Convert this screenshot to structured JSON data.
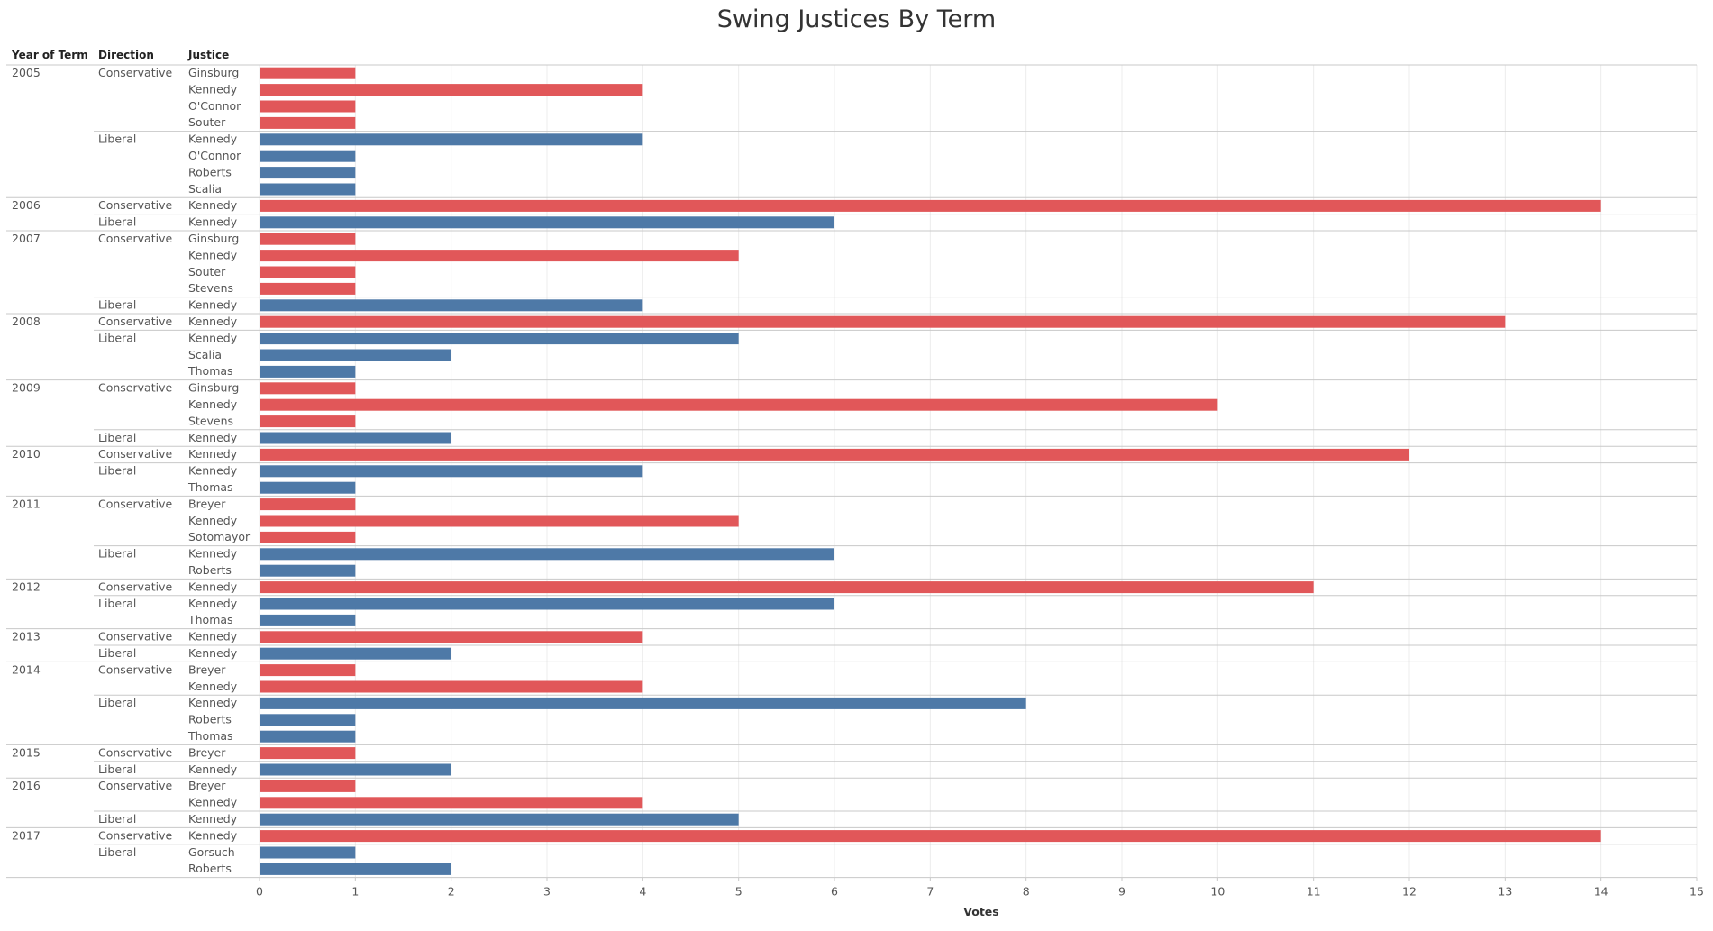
{
  "chart_data": {
    "type": "bar",
    "title": "Swing Justices By Term",
    "headers": {
      "year": "Year of Term",
      "direction": "Direction",
      "justice": "Justice"
    },
    "xlabel": "Votes",
    "xlim": [
      0,
      15
    ],
    "xticks": [
      "0",
      "1",
      "2",
      "3",
      "4",
      "5",
      "6",
      "7",
      "8",
      "9",
      "10",
      "11",
      "12",
      "13",
      "14",
      "15"
    ],
    "grid": true,
    "colors": {
      "Conservative": "#e15759",
      "Liberal": "#4e79a7"
    },
    "terms": [
      {
        "year": "2005",
        "groups": [
          {
            "direction": "Conservative",
            "rows": [
              {
                "justice": "Ginsburg",
                "votes": 1
              },
              {
                "justice": "Kennedy",
                "votes": 4
              },
              {
                "justice": "O'Connor",
                "votes": 1
              },
              {
                "justice": "Souter",
                "votes": 1
              }
            ]
          },
          {
            "direction": "Liberal",
            "rows": [
              {
                "justice": "Kennedy",
                "votes": 4
              },
              {
                "justice": "O'Connor",
                "votes": 1
              },
              {
                "justice": "Roberts",
                "votes": 1
              },
              {
                "justice": "Scalia",
                "votes": 1
              }
            ]
          }
        ]
      },
      {
        "year": "2006",
        "groups": [
          {
            "direction": "Conservative",
            "rows": [
              {
                "justice": "Kennedy",
                "votes": 14
              }
            ]
          },
          {
            "direction": "Liberal",
            "rows": [
              {
                "justice": "Kennedy",
                "votes": 6
              }
            ]
          }
        ]
      },
      {
        "year": "2007",
        "groups": [
          {
            "direction": "Conservative",
            "rows": [
              {
                "justice": "Ginsburg",
                "votes": 1
              },
              {
                "justice": "Kennedy",
                "votes": 5
              },
              {
                "justice": "Souter",
                "votes": 1
              },
              {
                "justice": "Stevens",
                "votes": 1
              }
            ]
          },
          {
            "direction": "Liberal",
            "rows": [
              {
                "justice": "Kennedy",
                "votes": 4
              }
            ]
          }
        ]
      },
      {
        "year": "2008",
        "groups": [
          {
            "direction": "Conservative",
            "rows": [
              {
                "justice": "Kennedy",
                "votes": 13
              }
            ]
          },
          {
            "direction": "Liberal",
            "rows": [
              {
                "justice": "Kennedy",
                "votes": 5
              },
              {
                "justice": "Scalia",
                "votes": 2
              },
              {
                "justice": "Thomas",
                "votes": 1
              }
            ]
          }
        ]
      },
      {
        "year": "2009",
        "groups": [
          {
            "direction": "Conservative",
            "rows": [
              {
                "justice": "Ginsburg",
                "votes": 1
              },
              {
                "justice": "Kennedy",
                "votes": 10
              },
              {
                "justice": "Stevens",
                "votes": 1
              }
            ]
          },
          {
            "direction": "Liberal",
            "rows": [
              {
                "justice": "Kennedy",
                "votes": 2
              }
            ]
          }
        ]
      },
      {
        "year": "2010",
        "groups": [
          {
            "direction": "Conservative",
            "rows": [
              {
                "justice": "Kennedy",
                "votes": 12
              }
            ]
          },
          {
            "direction": "Liberal",
            "rows": [
              {
                "justice": "Kennedy",
                "votes": 4
              },
              {
                "justice": "Thomas",
                "votes": 1
              }
            ]
          }
        ]
      },
      {
        "year": "2011",
        "groups": [
          {
            "direction": "Conservative",
            "rows": [
              {
                "justice": "Breyer",
                "votes": 1
              },
              {
                "justice": "Kennedy",
                "votes": 5
              },
              {
                "justice": "Sotomayor",
                "votes": 1
              }
            ]
          },
          {
            "direction": "Liberal",
            "rows": [
              {
                "justice": "Kennedy",
                "votes": 6
              },
              {
                "justice": "Roberts",
                "votes": 1
              }
            ]
          }
        ]
      },
      {
        "year": "2012",
        "groups": [
          {
            "direction": "Conservative",
            "rows": [
              {
                "justice": "Kennedy",
                "votes": 11
              }
            ]
          },
          {
            "direction": "Liberal",
            "rows": [
              {
                "justice": "Kennedy",
                "votes": 6
              },
              {
                "justice": "Thomas",
                "votes": 1
              }
            ]
          }
        ]
      },
      {
        "year": "2013",
        "groups": [
          {
            "direction": "Conservative",
            "rows": [
              {
                "justice": "Kennedy",
                "votes": 4
              }
            ]
          },
          {
            "direction": "Liberal",
            "rows": [
              {
                "justice": "Kennedy",
                "votes": 2
              }
            ]
          }
        ]
      },
      {
        "year": "2014",
        "groups": [
          {
            "direction": "Conservative",
            "rows": [
              {
                "justice": "Breyer",
                "votes": 1
              },
              {
                "justice": "Kennedy",
                "votes": 4
              }
            ]
          },
          {
            "direction": "Liberal",
            "rows": [
              {
                "justice": "Kennedy",
                "votes": 8
              },
              {
                "justice": "Roberts",
                "votes": 1
              },
              {
                "justice": "Thomas",
                "votes": 1
              }
            ]
          }
        ]
      },
      {
        "year": "2015",
        "groups": [
          {
            "direction": "Conservative",
            "rows": [
              {
                "justice": "Breyer",
                "votes": 1
              }
            ]
          },
          {
            "direction": "Liberal",
            "rows": [
              {
                "justice": "Kennedy",
                "votes": 2
              }
            ]
          }
        ]
      },
      {
        "year": "2016",
        "groups": [
          {
            "direction": "Conservative",
            "rows": [
              {
                "justice": "Breyer",
                "votes": 1
              },
              {
                "justice": "Kennedy",
                "votes": 4
              }
            ]
          },
          {
            "direction": "Liberal",
            "rows": [
              {
                "justice": "Kennedy",
                "votes": 5
              }
            ]
          }
        ]
      },
      {
        "year": "2017",
        "groups": [
          {
            "direction": "Conservative",
            "rows": [
              {
                "justice": "Kennedy",
                "votes": 14
              }
            ]
          },
          {
            "direction": "Liberal",
            "rows": [
              {
                "justice": "Gorsuch",
                "votes": 1
              },
              {
                "justice": "Roberts",
                "votes": 2
              }
            ]
          }
        ]
      }
    ]
  }
}
